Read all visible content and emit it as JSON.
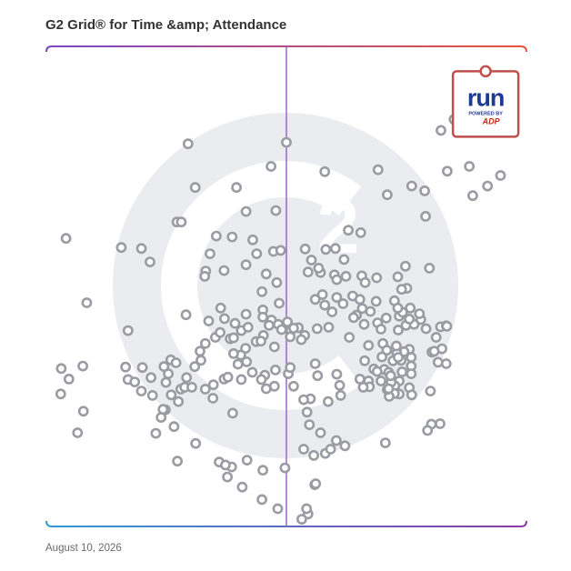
{
  "header": {
    "title": "G2 Grid® for Time &amp; Attendance"
  },
  "footer": {
    "date": "August 10, 2026"
  },
  "featured_product": {
    "logo_text": "run",
    "powered_by": "POWERED BY",
    "brand": "ADP",
    "icon": "run-powered-by-adp-logo"
  },
  "watermark": {
    "icon": "g2-logo-watermark",
    "text": "2"
  },
  "colors": {
    "frame_left": "#7b46c9",
    "frame_right": "#e8553a",
    "frame_bottom_left": "#2f9bd6",
    "frame_bottom_right": "#8c3aa8",
    "divider_vertical": "#9a5cc2",
    "divider_horizontal_left": "#4e6fc4",
    "divider_horizontal_right": "#b84a6e",
    "point": "#9b9ba3",
    "watermark": "#ebecef",
    "featured_border": "#c0504d",
    "logo_blue": "#1f3a93",
    "logo_red": "#d0271d"
  },
  "chart_data": {
    "type": "scatter",
    "title": "G2 Grid® for Time &amp; Attendance",
    "xlim": [
      0,
      100
    ],
    "ylim": [
      0,
      100
    ],
    "grid": false,
    "quadrant_dividers": {
      "x": 50,
      "y": 50
    },
    "featured": {
      "name": "run POWERED BY ADP",
      "x": 91.5,
      "y": 88.0
    },
    "points": [
      [
        84.9,
        84.8
      ],
      [
        92.6,
        91.7
      ],
      [
        82.2,
        82.5
      ],
      [
        83.5,
        74.0
      ],
      [
        88.8,
        68.9
      ],
      [
        91.9,
        70.9
      ],
      [
        88.1,
        75.0
      ],
      [
        94.6,
        73.1
      ],
      [
        50.0,
        80.0
      ],
      [
        29.5,
        79.7
      ],
      [
        46.8,
        75.0
      ],
      [
        58.0,
        73.9
      ],
      [
        69.1,
        74.3
      ],
      [
        76.1,
        70.9
      ],
      [
        71.0,
        69.1
      ],
      [
        78.8,
        69.9
      ],
      [
        31.0,
        70.6
      ],
      [
        39.6,
        70.6
      ],
      [
        41.6,
        65.6
      ],
      [
        47.8,
        65.8
      ],
      [
        79.0,
        64.6
      ],
      [
        27.2,
        63.4
      ],
      [
        28.1,
        63.4
      ],
      [
        35.4,
        60.5
      ],
      [
        38.7,
        60.3
      ],
      [
        43.0,
        59.7
      ],
      [
        62.9,
        61.7
      ],
      [
        65.5,
        61.2
      ],
      [
        4.1,
        60.0
      ],
      [
        15.6,
        58.1
      ],
      [
        19.8,
        57.9
      ],
      [
        34.1,
        56.8
      ],
      [
        43.8,
        56.8
      ],
      [
        47.3,
        57.3
      ],
      [
        48.8,
        57.5
      ],
      [
        53.9,
        57.8
      ],
      [
        58.2,
        57.7
      ],
      [
        21.6,
        55.1
      ],
      [
        33.2,
        53.2
      ],
      [
        41.6,
        54.5
      ],
      [
        55.2,
        55.5
      ],
      [
        74.8,
        54.2
      ],
      [
        75.1,
        49.6
      ],
      [
        57.1,
        52.9
      ],
      [
        60.0,
        52.4
      ],
      [
        65.7,
        52.2
      ],
      [
        62.4,
        52.1
      ],
      [
        60.5,
        51.4
      ],
      [
        45.8,
        52.6
      ],
      [
        68.8,
        51.8
      ],
      [
        33.0,
        52.1
      ],
      [
        37.0,
        53.3
      ],
      [
        54.5,
        53.0
      ],
      [
        56.7,
        53.8
      ],
      [
        62.0,
        55.6
      ],
      [
        60.2,
        57.9
      ],
      [
        79.8,
        53.8
      ],
      [
        66.4,
        50.8
      ],
      [
        68.7,
        46.9
      ],
      [
        57.5,
        48.3
      ],
      [
        61.8,
        46.4
      ],
      [
        63.8,
        48.0
      ],
      [
        67.5,
        44.8
      ],
      [
        64.6,
        44.0
      ],
      [
        59.5,
        44.7
      ],
      [
        69.0,
        42.4
      ],
      [
        66.2,
        42.1
      ],
      [
        63.1,
        39.4
      ],
      [
        56.4,
        41.2
      ],
      [
        58.8,
        41.5
      ],
      [
        53.8,
        39.8
      ],
      [
        52.5,
        41.4
      ],
      [
        50.9,
        40.8
      ],
      [
        51.5,
        41.3
      ],
      [
        48.5,
        46.5
      ],
      [
        46.9,
        43.0
      ],
      [
        45.1,
        45.1
      ],
      [
        44.9,
        48.9
      ],
      [
        48.0,
        50.8
      ],
      [
        56.0,
        47.3
      ],
      [
        58.0,
        46.1
      ],
      [
        60.5,
        47.7
      ],
      [
        65.3,
        47.3
      ],
      [
        65.8,
        45.4
      ],
      [
        64.0,
        43.5
      ],
      [
        67.1,
        37.7
      ],
      [
        66.3,
        34.5
      ],
      [
        70.1,
        38.1
      ],
      [
        70.9,
        36.7
      ],
      [
        68.2,
        32.8
      ],
      [
        69.9,
        35.3
      ],
      [
        70.4,
        32.7
      ],
      [
        67.1,
        30.3
      ],
      [
        65.3,
        30.7
      ],
      [
        60.5,
        31.7
      ],
      [
        61.1,
        29.4
      ],
      [
        61.3,
        27.3
      ],
      [
        58.7,
        26.0
      ],
      [
        55.0,
        26.6
      ],
      [
        53.6,
        26.4
      ],
      [
        50.4,
        31.8
      ],
      [
        50.8,
        33.1
      ],
      [
        47.5,
        37.4
      ],
      [
        45.2,
        39.8
      ],
      [
        43.7,
        38.5
      ],
      [
        41.5,
        37.1
      ],
      [
        40.5,
        35.7
      ],
      [
        38.3,
        39.1
      ],
      [
        39.0,
        36.0
      ],
      [
        35.2,
        39.4
      ],
      [
        33.1,
        38.1
      ],
      [
        32.0,
        36.5
      ],
      [
        30.9,
        33.3
      ],
      [
        29.2,
        31.0
      ],
      [
        28.0,
        28.6
      ],
      [
        26.0,
        27.4
      ],
      [
        24.8,
        24.3
      ],
      [
        23.9,
        22.7
      ],
      [
        22.8,
        19.4
      ],
      [
        26.6,
        20.8
      ],
      [
        31.1,
        17.3
      ],
      [
        36.0,
        13.4
      ],
      [
        38.6,
        12.4
      ],
      [
        37.7,
        10.3
      ],
      [
        40.8,
        8.2
      ],
      [
        44.9,
        5.6
      ],
      [
        48.2,
        3.7
      ],
      [
        54.5,
        2.6
      ],
      [
        36.2,
        40.4
      ],
      [
        37.1,
        43.3
      ],
      [
        33.8,
        42.8
      ],
      [
        36.3,
        45.5
      ],
      [
        40.6,
        40.8
      ],
      [
        39.3,
        42.3
      ],
      [
        42.0,
        41.5
      ],
      [
        41.6,
        44.2
      ],
      [
        45.1,
        43.6
      ],
      [
        46.4,
        41.9
      ],
      [
        48.3,
        42.1
      ],
      [
        49.0,
        41.0
      ],
      [
        50.2,
        42.6
      ],
      [
        50.8,
        39.5
      ],
      [
        53.1,
        38.9
      ],
      [
        56.0,
        33.9
      ],
      [
        56.5,
        31.4
      ],
      [
        51.5,
        29.2
      ],
      [
        54.3,
        23.8
      ],
      [
        54.8,
        21.2
      ],
      [
        57.1,
        19.5
      ],
      [
        53.6,
        16.1
      ],
      [
        55.7,
        14.8
      ],
      [
        58.1,
        15.2
      ],
      [
        73.2,
        52.0
      ],
      [
        74.0,
        49.4
      ],
      [
        72.5,
        47.0
      ],
      [
        73.5,
        43.8
      ],
      [
        70.8,
        43.4
      ],
      [
        69.7,
        41.1
      ],
      [
        76.6,
        42.1
      ],
      [
        75.8,
        45.5
      ],
      [
        74.2,
        44.6
      ],
      [
        74.9,
        41.9
      ],
      [
        79.1,
        41.2
      ],
      [
        78.0,
        43.1
      ],
      [
        82.1,
        41.6
      ],
      [
        83.3,
        41.8
      ],
      [
        82.4,
        37.0
      ],
      [
        81.6,
        34.2
      ],
      [
        80.3,
        36.3
      ],
      [
        75.6,
        36.9
      ],
      [
        76.0,
        35.2
      ],
      [
        76.0,
        33.4
      ],
      [
        74.5,
        36.4
      ],
      [
        73.0,
        36.1
      ],
      [
        72.2,
        34.5
      ],
      [
        73.9,
        34.6
      ],
      [
        74.1,
        32.2
      ],
      [
        73.5,
        30.3
      ],
      [
        75.6,
        28.9
      ],
      [
        76.1,
        27.4
      ],
      [
        73.5,
        27.6
      ],
      [
        72.6,
        29.3
      ],
      [
        71.8,
        30.0
      ],
      [
        71.3,
        32.1
      ],
      [
        76.0,
        31.8
      ],
      [
        71.7,
        31.4
      ],
      [
        72.5,
        27.7
      ],
      [
        71.4,
        27.1
      ],
      [
        71.0,
        28.5
      ],
      [
        69.7,
        30.3
      ],
      [
        68.9,
        32.3
      ],
      [
        67.3,
        29.1
      ],
      [
        66.0,
        29.0
      ],
      [
        80.0,
        28.2
      ],
      [
        80.2,
        21.3
      ],
      [
        71.3,
        28.7
      ],
      [
        79.4,
        20.0
      ],
      [
        82.0,
        21.4
      ],
      [
        83.3,
        33.9
      ],
      [
        80.8,
        36.5
      ],
      [
        81.2,
        39.4
      ],
      [
        83.4,
        41.7
      ],
      [
        77.7,
        44.3
      ],
      [
        75.6,
        43.2
      ],
      [
        73.3,
        35.2
      ],
      [
        72.9,
        37.6
      ],
      [
        73.3,
        40.9
      ],
      [
        73.2,
        45.5
      ],
      [
        8.4,
        46.6
      ],
      [
        17.0,
        40.8
      ],
      [
        29.1,
        44.1
      ],
      [
        32.2,
        34.6
      ],
      [
        28.8,
        29.0
      ],
      [
        30.3,
        29.0
      ],
      [
        25.4,
        31.8
      ],
      [
        24.5,
        33.3
      ],
      [
        25.9,
        34.7
      ],
      [
        16.5,
        33.2
      ],
      [
        17.0,
        30.6
      ],
      [
        18.4,
        30.1
      ],
      [
        20.0,
        33.1
      ],
      [
        21.8,
        31.0
      ],
      [
        24.9,
        30.0
      ],
      [
        27.0,
        34.1
      ],
      [
        3.1,
        32.9
      ],
      [
        4.7,
        30.7
      ],
      [
        3.0,
        27.6
      ],
      [
        7.7,
        24.0
      ],
      [
        7.6,
        33.4
      ],
      [
        19.8,
        28.2
      ],
      [
        24.3,
        24.4
      ],
      [
        38.8,
        23.6
      ],
      [
        33.1,
        28.6
      ],
      [
        37.0,
        30.7
      ],
      [
        41.7,
        34.3
      ],
      [
        39.9,
        33.8
      ],
      [
        42.9,
        32.1
      ],
      [
        47.7,
        32.6
      ],
      [
        45.5,
        31.5
      ],
      [
        44.8,
        30.6
      ],
      [
        40.6,
        30.6
      ],
      [
        47.5,
        29.2
      ],
      [
        45.8,
        28.7
      ],
      [
        39.0,
        39.3
      ],
      [
        44.7,
        38.6
      ],
      [
        34.8,
        29.5
      ],
      [
        37.8,
        31.1
      ],
      [
        27.5,
        26.0
      ],
      [
        34.7,
        26.7
      ],
      [
        22.1,
        27.3
      ],
      [
        6.5,
        19.5
      ],
      [
        27.3,
        13.6
      ],
      [
        37.3,
        12.8
      ],
      [
        41.8,
        13.8
      ],
      [
        45.1,
        11.7
      ],
      [
        49.7,
        12.2
      ],
      [
        55.9,
        8.7
      ],
      [
        56.1,
        8.9
      ],
      [
        54.2,
        3.7
      ],
      [
        53.2,
        1.5
      ],
      [
        70.6,
        17.4
      ],
      [
        62.2,
        16.8
      ],
      [
        60.4,
        17.9
      ],
      [
        59.2,
        16.1
      ]
    ]
  }
}
